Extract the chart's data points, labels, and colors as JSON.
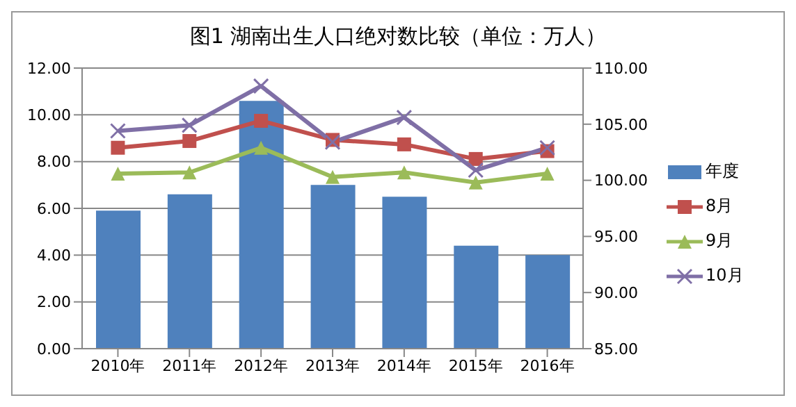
{
  "chart_data": {
    "type": "bar",
    "title": "图1 湖南出生人口绝对数比较（单位：万人）",
    "categories": [
      "2010年",
      "2011年",
      "2012年",
      "2013年",
      "2014年",
      "2015年",
      "2016年"
    ],
    "series": [
      {
        "name": "年度",
        "color": "#4f81bd",
        "values": [
          5.9,
          6.6,
          10.6,
          7.0,
          6.5,
          4.4,
          4.0
        ]
      },
      {
        "name": "8月",
        "type": "line",
        "axis": "y2",
        "marker": "square",
        "color": "#c0504d",
        "values": [
          102.9,
          103.5,
          105.3,
          103.6,
          103.2,
          101.9,
          102.6
        ]
      },
      {
        "name": "9月",
        "type": "line",
        "axis": "y2",
        "marker": "triangle",
        "color": "#9bbb59",
        "values": [
          100.6,
          100.7,
          102.9,
          100.3,
          100.7,
          99.8,
          100.6
        ]
      },
      {
        "name": "10月",
        "type": "line",
        "axis": "y2",
        "marker": "cross",
        "color": "#7f6fa6",
        "values": [
          104.4,
          104.9,
          108.4,
          103.4,
          105.6,
          100.9,
          102.9
        ]
      }
    ],
    "ylim": [
      0,
      12
    ],
    "yticks": [
      {
        "value": 0,
        "label": "0.00"
      },
      {
        "value": 2,
        "label": "2.00"
      },
      {
        "value": 4,
        "label": "4.00"
      },
      {
        "value": 6,
        "label": "6.00"
      },
      {
        "value": 8,
        "label": "8.00"
      },
      {
        "value": 10,
        "label": "10.00"
      },
      {
        "value": 12,
        "label": "12.00"
      }
    ],
    "y2lim": [
      85,
      110
    ],
    "y2ticks": [
      {
        "value": 85,
        "label": "85.00"
      },
      {
        "value": 90,
        "label": "90.00"
      },
      {
        "value": 95,
        "label": "95.00"
      },
      {
        "value": 100,
        "label": "100.00"
      },
      {
        "value": 105,
        "label": "105.00"
      },
      {
        "value": 110,
        "label": "110.00"
      }
    ],
    "grid": "y",
    "legend": "right"
  }
}
